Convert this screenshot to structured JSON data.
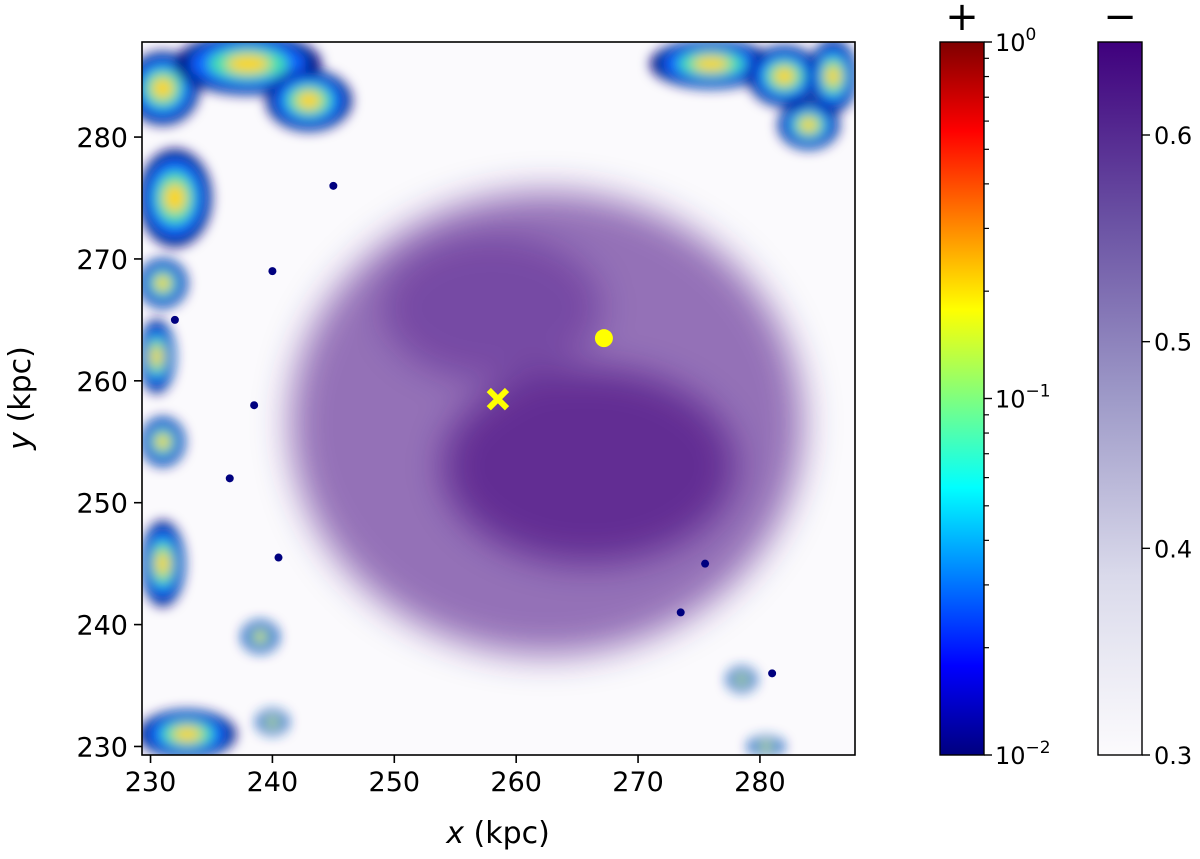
{
  "chart_data": {
    "type": "heatmap",
    "xlabel": {
      "var": "x",
      "unit": " (kpc)"
    },
    "ylabel": {
      "var": "y",
      "unit": " (kpc)"
    },
    "xlim": [
      229.3,
      287.8
    ],
    "ylim": [
      229.3,
      287.8
    ],
    "xticks": [
      {
        "value": 230,
        "label": "230"
      },
      {
        "value": 240,
        "label": "240"
      },
      {
        "value": 250,
        "label": "250"
      },
      {
        "value": 260,
        "label": "260"
      },
      {
        "value": 270,
        "label": "270"
      },
      {
        "value": 280,
        "label": "280"
      }
    ],
    "yticks": [
      {
        "value": 230,
        "label": "230"
      },
      {
        "value": 240,
        "label": "240"
      },
      {
        "value": 250,
        "label": "250"
      },
      {
        "value": 260,
        "label": "260"
      },
      {
        "value": 270,
        "label": "270"
      },
      {
        "value": 280,
        "label": "280"
      }
    ],
    "markers": [
      {
        "type": "circle",
        "x": 267.2,
        "y": 263.5,
        "color": "#ffff00"
      },
      {
        "type": "x",
        "x": 258.5,
        "y": 258.5,
        "color": "#ffff00"
      }
    ],
    "density_blobs": [
      {
        "cx": 262.5,
        "cy": 256.5,
        "rx": 21,
        "ry": 19,
        "alpha": 0.55
      },
      {
        "cx": 266,
        "cy": 253,
        "rx": 12,
        "ry": 8,
        "alpha": 0.6
      },
      {
        "cx": 258,
        "cy": 266,
        "rx": 9,
        "ry": 6,
        "alpha": 0.35
      }
    ],
    "hot_regions": [
      {
        "cx": 231,
        "cy": 284,
        "rx": 3,
        "ry": 3
      },
      {
        "cx": 238,
        "cy": 286,
        "rx": 6,
        "ry": 2.5
      },
      {
        "cx": 243,
        "cy": 283,
        "rx": 3.5,
        "ry": 2.5
      },
      {
        "cx": 232,
        "cy": 275,
        "rx": 3,
        "ry": 4
      },
      {
        "cx": 231,
        "cy": 268,
        "rx": 2,
        "ry": 2
      },
      {
        "cx": 230.5,
        "cy": 262,
        "rx": 1.5,
        "ry": 3
      },
      {
        "cx": 231,
        "cy": 255,
        "rx": 1.8,
        "ry": 2
      },
      {
        "cx": 231,
        "cy": 245,
        "rx": 1.8,
        "ry": 3.5
      },
      {
        "cx": 233,
        "cy": 231,
        "rx": 4,
        "ry": 2
      },
      {
        "cx": 239,
        "cy": 239,
        "rx": 1.5,
        "ry": 1.3
      },
      {
        "cx": 240,
        "cy": 232,
        "rx": 1.3,
        "ry": 1
      },
      {
        "cx": 276,
        "cy": 286,
        "rx": 5,
        "ry": 2
      },
      {
        "cx": 282,
        "cy": 285,
        "rx": 3,
        "ry": 2.5
      },
      {
        "cx": 286,
        "cy": 285,
        "rx": 2,
        "ry": 3
      },
      {
        "cx": 284,
        "cy": 281,
        "rx": 2.5,
        "ry": 2
      },
      {
        "cx": 280.5,
        "cy": 230,
        "rx": 1.5,
        "ry": 0.8
      },
      {
        "cx": 278.5,
        "cy": 235.5,
        "rx": 1.2,
        "ry": 1
      }
    ],
    "dark_specks": [
      {
        "x": 240,
        "y": 269
      },
      {
        "x": 238.5,
        "y": 258
      },
      {
        "x": 245,
        "y": 276
      },
      {
        "x": 275.5,
        "y": 245
      },
      {
        "x": 273.5,
        "y": 241
      },
      {
        "x": 281,
        "y": 236
      },
      {
        "x": 240.5,
        "y": 245.5
      },
      {
        "x": 236.5,
        "y": 252
      },
      {
        "x": 232,
        "y": 265
      }
    ],
    "colorbar_positive": {
      "sign": "+",
      "scale": "log",
      "range": [
        0.01,
        1
      ],
      "colors": [
        "#00007f",
        "#0000ff",
        "#007fff",
        "#00ffff",
        "#7fff7f",
        "#ffff00",
        "#ff7f00",
        "#ff0000",
        "#7f0000"
      ],
      "ticks": [
        {
          "value": 1,
          "base": "10",
          "exp": "0"
        },
        {
          "value": 0.1,
          "base": "10",
          "exp": "−1"
        },
        {
          "value": 0.01,
          "base": "10",
          "exp": "−2"
        }
      ]
    },
    "colorbar_negative": {
      "sign": "−",
      "scale": "linear",
      "range": [
        0.3,
        0.645
      ],
      "colors": [
        "#fcfbfd",
        "#dadaeb",
        "#9e9ac8",
        "#6a51a3",
        "#3f007d"
      ],
      "ticks": [
        {
          "value": 0.6,
          "label": "0.6"
        },
        {
          "value": 0.5,
          "label": "0.5"
        },
        {
          "value": 0.4,
          "label": "0.4"
        },
        {
          "value": 0.3,
          "label": "0.3"
        }
      ]
    }
  }
}
